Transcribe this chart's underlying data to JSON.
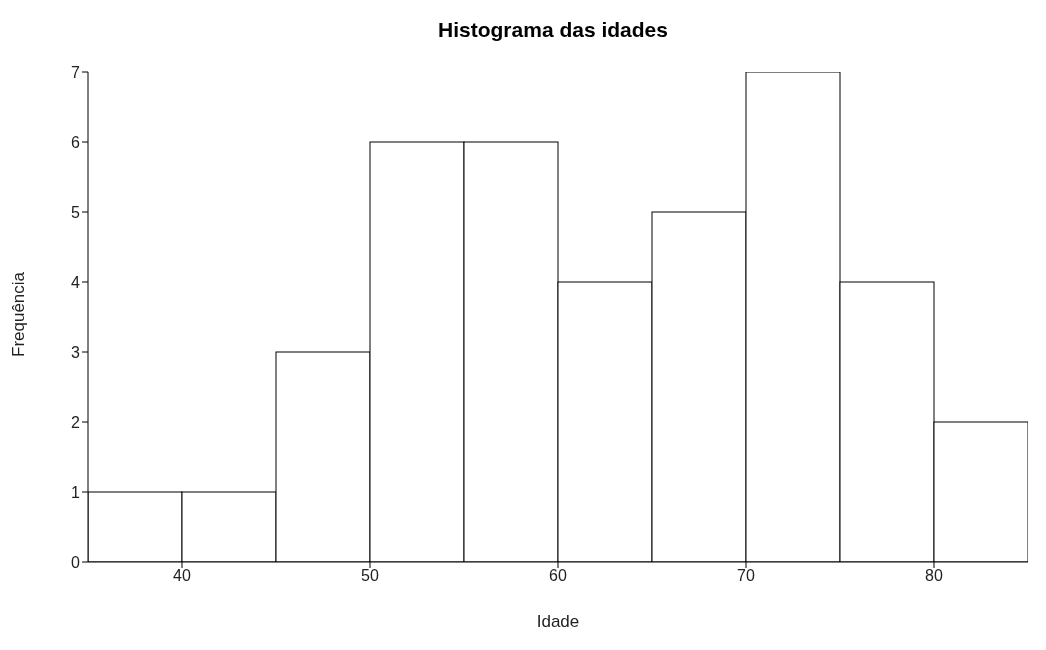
{
  "chart_data": {
    "type": "histogram",
    "title": "Histograma das idades",
    "xlabel": "Idade",
    "ylabel": "Frequência",
    "bins": [
      35,
      40,
      45,
      50,
      55,
      60,
      65,
      70,
      75,
      80,
      85
    ],
    "values": [
      1,
      1,
      3,
      6,
      6,
      4,
      5,
      7,
      4,
      2
    ],
    "color": "#ffffff",
    "xlim": [
      35,
      85
    ],
    "xticks": [
      40,
      50,
      60,
      70,
      80
    ],
    "ylim": [
      0,
      7
    ],
    "yticks": [
      0,
      1,
      2,
      3,
      4,
      5,
      6,
      7
    ],
    "grid": false
  }
}
